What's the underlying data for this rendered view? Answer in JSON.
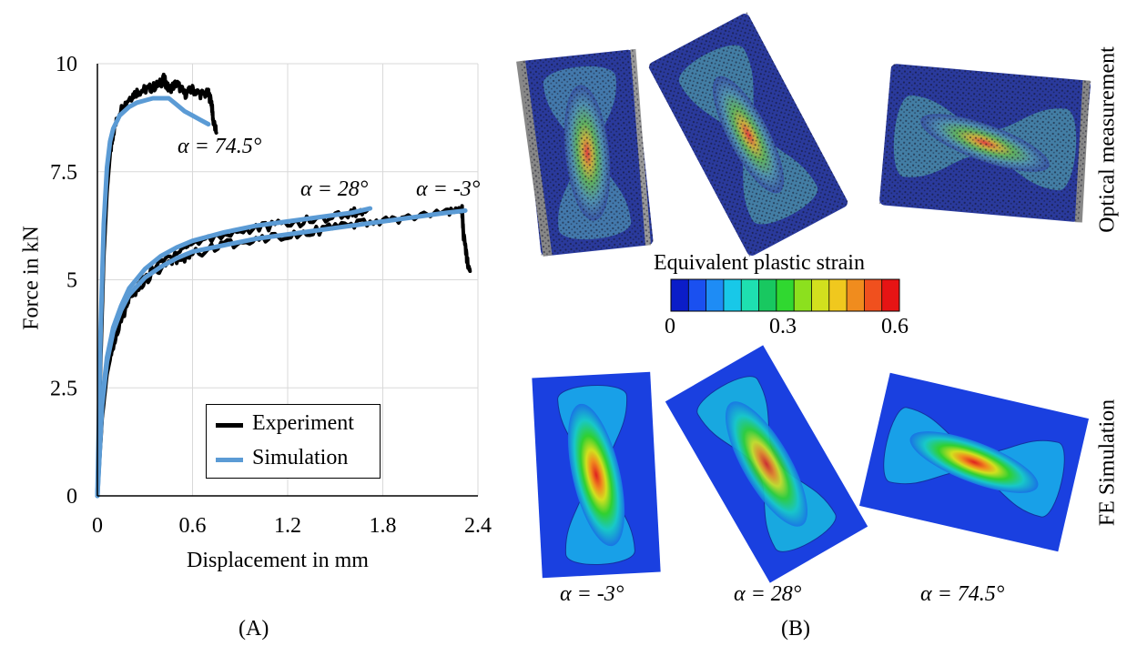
{
  "chart_data": {
    "type": "line",
    "xlabel": "Displacement in mm",
    "ylabel": "Force in kN",
    "xlim": [
      0,
      2.4
    ],
    "ylim": [
      0,
      10
    ],
    "xticks": [
      "0",
      "0.6",
      "1.2",
      "1.8",
      "2.4"
    ],
    "yticks": [
      "0",
      "2.5",
      "5",
      "7.5",
      "10"
    ],
    "grid": true,
    "legend_position": "bottom-right",
    "legend": [
      "Experiment",
      "Simulation"
    ],
    "series": [
      {
        "name": "Experiment",
        "color": "#000000",
        "group": "α = 74.5°",
        "x": [
          0,
          0.02,
          0.04,
          0.06,
          0.08,
          0.1,
          0.14,
          0.2,
          0.25,
          0.3,
          0.35,
          0.4,
          0.42,
          0.45,
          0.5,
          0.55,
          0.6,
          0.65,
          0.7,
          0.72,
          0.73,
          0.75
        ],
        "y": [
          0,
          3.0,
          5.5,
          7.0,
          7.9,
          8.4,
          8.9,
          9.2,
          9.35,
          9.4,
          9.45,
          9.55,
          9.65,
          9.4,
          9.55,
          9.3,
          9.4,
          9.3,
          9.3,
          9.1,
          8.7,
          8.4
        ]
      },
      {
        "name": "Simulation",
        "color": "#5b9bd5",
        "group": "α = 74.5°",
        "x": [
          0,
          0.02,
          0.04,
          0.06,
          0.08,
          0.1,
          0.14,
          0.2,
          0.25,
          0.3,
          0.35,
          0.4,
          0.45,
          0.5,
          0.55,
          0.6,
          0.65,
          0.7
        ],
        "y": [
          0,
          3.8,
          6.3,
          7.6,
          8.2,
          8.5,
          8.8,
          9.0,
          9.1,
          9.15,
          9.2,
          9.2,
          9.2,
          9.05,
          8.9,
          8.8,
          8.7,
          8.6
        ]
      },
      {
        "name": "Experiment",
        "color": "#000000",
        "group": "α = 28°",
        "x": [
          0,
          0.03,
          0.06,
          0.1,
          0.15,
          0.2,
          0.3,
          0.4,
          0.5,
          0.6,
          0.8,
          1.0,
          1.2,
          1.4,
          1.6,
          1.7
        ],
        "y": [
          0,
          1.9,
          2.9,
          3.6,
          4.2,
          4.6,
          5.1,
          5.4,
          5.65,
          5.85,
          6.05,
          6.2,
          6.3,
          6.4,
          6.55,
          6.6
        ]
      },
      {
        "name": "Simulation",
        "color": "#5b9bd5",
        "group": "α = 28°",
        "x": [
          0,
          0.03,
          0.06,
          0.1,
          0.15,
          0.2,
          0.3,
          0.4,
          0.5,
          0.6,
          0.8,
          1.0,
          1.2,
          1.4,
          1.6,
          1.72
        ],
        "y": [
          0,
          2.2,
          3.2,
          3.9,
          4.4,
          4.8,
          5.25,
          5.55,
          5.75,
          5.9,
          6.1,
          6.25,
          6.35,
          6.45,
          6.55,
          6.65
        ]
      },
      {
        "name": "Experiment",
        "color": "#000000",
        "group": "α = -3°",
        "x": [
          0,
          0.03,
          0.06,
          0.1,
          0.15,
          0.2,
          0.3,
          0.4,
          0.5,
          0.6,
          0.8,
          1.0,
          1.2,
          1.4,
          1.6,
          1.8,
          2.0,
          2.2,
          2.3,
          2.31,
          2.33,
          2.35
        ],
        "y": [
          0,
          1.8,
          2.8,
          3.5,
          4.1,
          4.5,
          4.95,
          5.25,
          5.45,
          5.6,
          5.8,
          5.95,
          6.05,
          6.15,
          6.25,
          6.35,
          6.45,
          6.55,
          6.6,
          6.0,
          5.5,
          5.2
        ]
      },
      {
        "name": "Simulation",
        "color": "#5b9bd5",
        "group": "α = -3°",
        "x": [
          0,
          0.03,
          0.06,
          0.1,
          0.15,
          0.2,
          0.3,
          0.4,
          0.5,
          0.6,
          0.8,
          1.0,
          1.2,
          1.4,
          1.6,
          1.8,
          2.0,
          2.2,
          2.32
        ],
        "y": [
          0,
          2.1,
          3.1,
          3.8,
          4.3,
          4.65,
          5.05,
          5.3,
          5.5,
          5.65,
          5.8,
          5.95,
          6.05,
          6.15,
          6.25,
          6.35,
          6.45,
          6.55,
          6.6
        ]
      }
    ],
    "annotations": [
      {
        "text": "α = 74.5°"
      },
      {
        "text": "α = 28°"
      },
      {
        "text": "α = -3°"
      }
    ]
  },
  "panel_labels": {
    "a": "(A)",
    "b": "(B)"
  },
  "right_panel": {
    "row_labels": {
      "top": "Optical measurement",
      "bottom": "FE Simulation"
    },
    "colorbar": {
      "title": "Equivalent plastic strain",
      "ticks": [
        "0",
        "0.3",
        "0.6"
      ],
      "colors": [
        "#0b1dc8",
        "#1a50f0",
        "#1e8cf5",
        "#18c8e8",
        "#1ee0b0",
        "#18c860",
        "#30d830",
        "#8ce01e",
        "#d2e01e",
        "#f0c81e",
        "#f08c1e",
        "#f0501e",
        "#e61414"
      ]
    },
    "specimen_labels": [
      "α = -3°",
      "α = 28°",
      "α = 74.5°"
    ]
  }
}
